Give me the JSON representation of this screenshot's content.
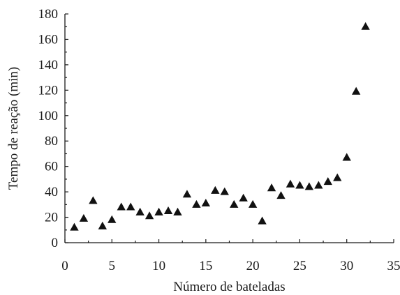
{
  "chart_data": {
    "type": "scatter",
    "marker": "triangle",
    "marker_color": "#111111",
    "xlabel": "Número de bateladas",
    "ylabel": "Tempo de reação (min)",
    "xlim": [
      0,
      35
    ],
    "ylim": [
      0,
      180
    ],
    "xticks": [
      "0",
      "5",
      "10",
      "15",
      "20",
      "25",
      "30",
      "35"
    ],
    "yticks": [
      "0",
      "20",
      "40",
      "60",
      "80",
      "100",
      "120",
      "140",
      "160",
      "180"
    ],
    "grid": false,
    "x": [
      1,
      2,
      3,
      4,
      5,
      6,
      7,
      8,
      9,
      10,
      11,
      12,
      13,
      14,
      15,
      16,
      17,
      18,
      19,
      20,
      21,
      22,
      23,
      24,
      25,
      26,
      27,
      28,
      29,
      30,
      31,
      32
    ],
    "y": [
      12,
      19,
      33,
      13,
      18,
      28,
      28,
      24,
      21,
      24,
      25,
      24,
      38,
      30,
      31,
      41,
      40,
      30,
      35,
      30,
      17,
      43,
      37,
      46,
      45,
      44,
      45,
      48,
      51,
      67,
      119,
      170
    ]
  }
}
